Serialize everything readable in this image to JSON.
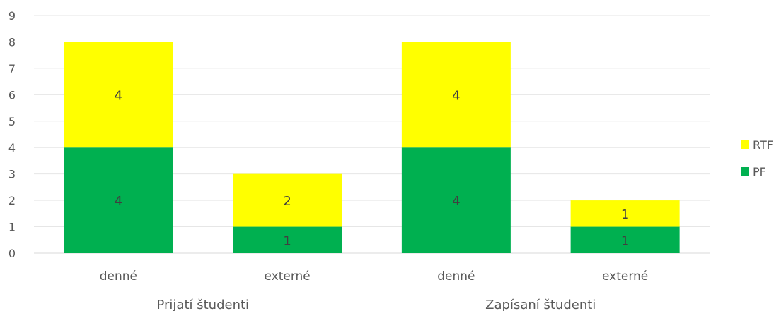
{
  "chart_data": {
    "type": "bar",
    "stacked": true,
    "groups": [
      {
        "label": "Prijatí študenti",
        "categories": [
          "denné",
          "externé"
        ]
      },
      {
        "label": "Zapísaní študenti",
        "categories": [
          "denné",
          "externé"
        ]
      }
    ],
    "categories": [
      "denné",
      "externé",
      "denné",
      "externé"
    ],
    "series": [
      {
        "name": "PF",
        "color": "#00b050",
        "values": [
          4,
          1,
          4,
          1
        ]
      },
      {
        "name": "RTF",
        "color": "#ffff00",
        "values": [
          4,
          2,
          4,
          1
        ]
      }
    ],
    "ylim": [
      0,
      9
    ],
    "yticks": [
      0,
      1,
      2,
      3,
      4,
      5,
      6,
      7,
      8,
      9
    ],
    "grid": true,
    "legend_position": "right"
  }
}
